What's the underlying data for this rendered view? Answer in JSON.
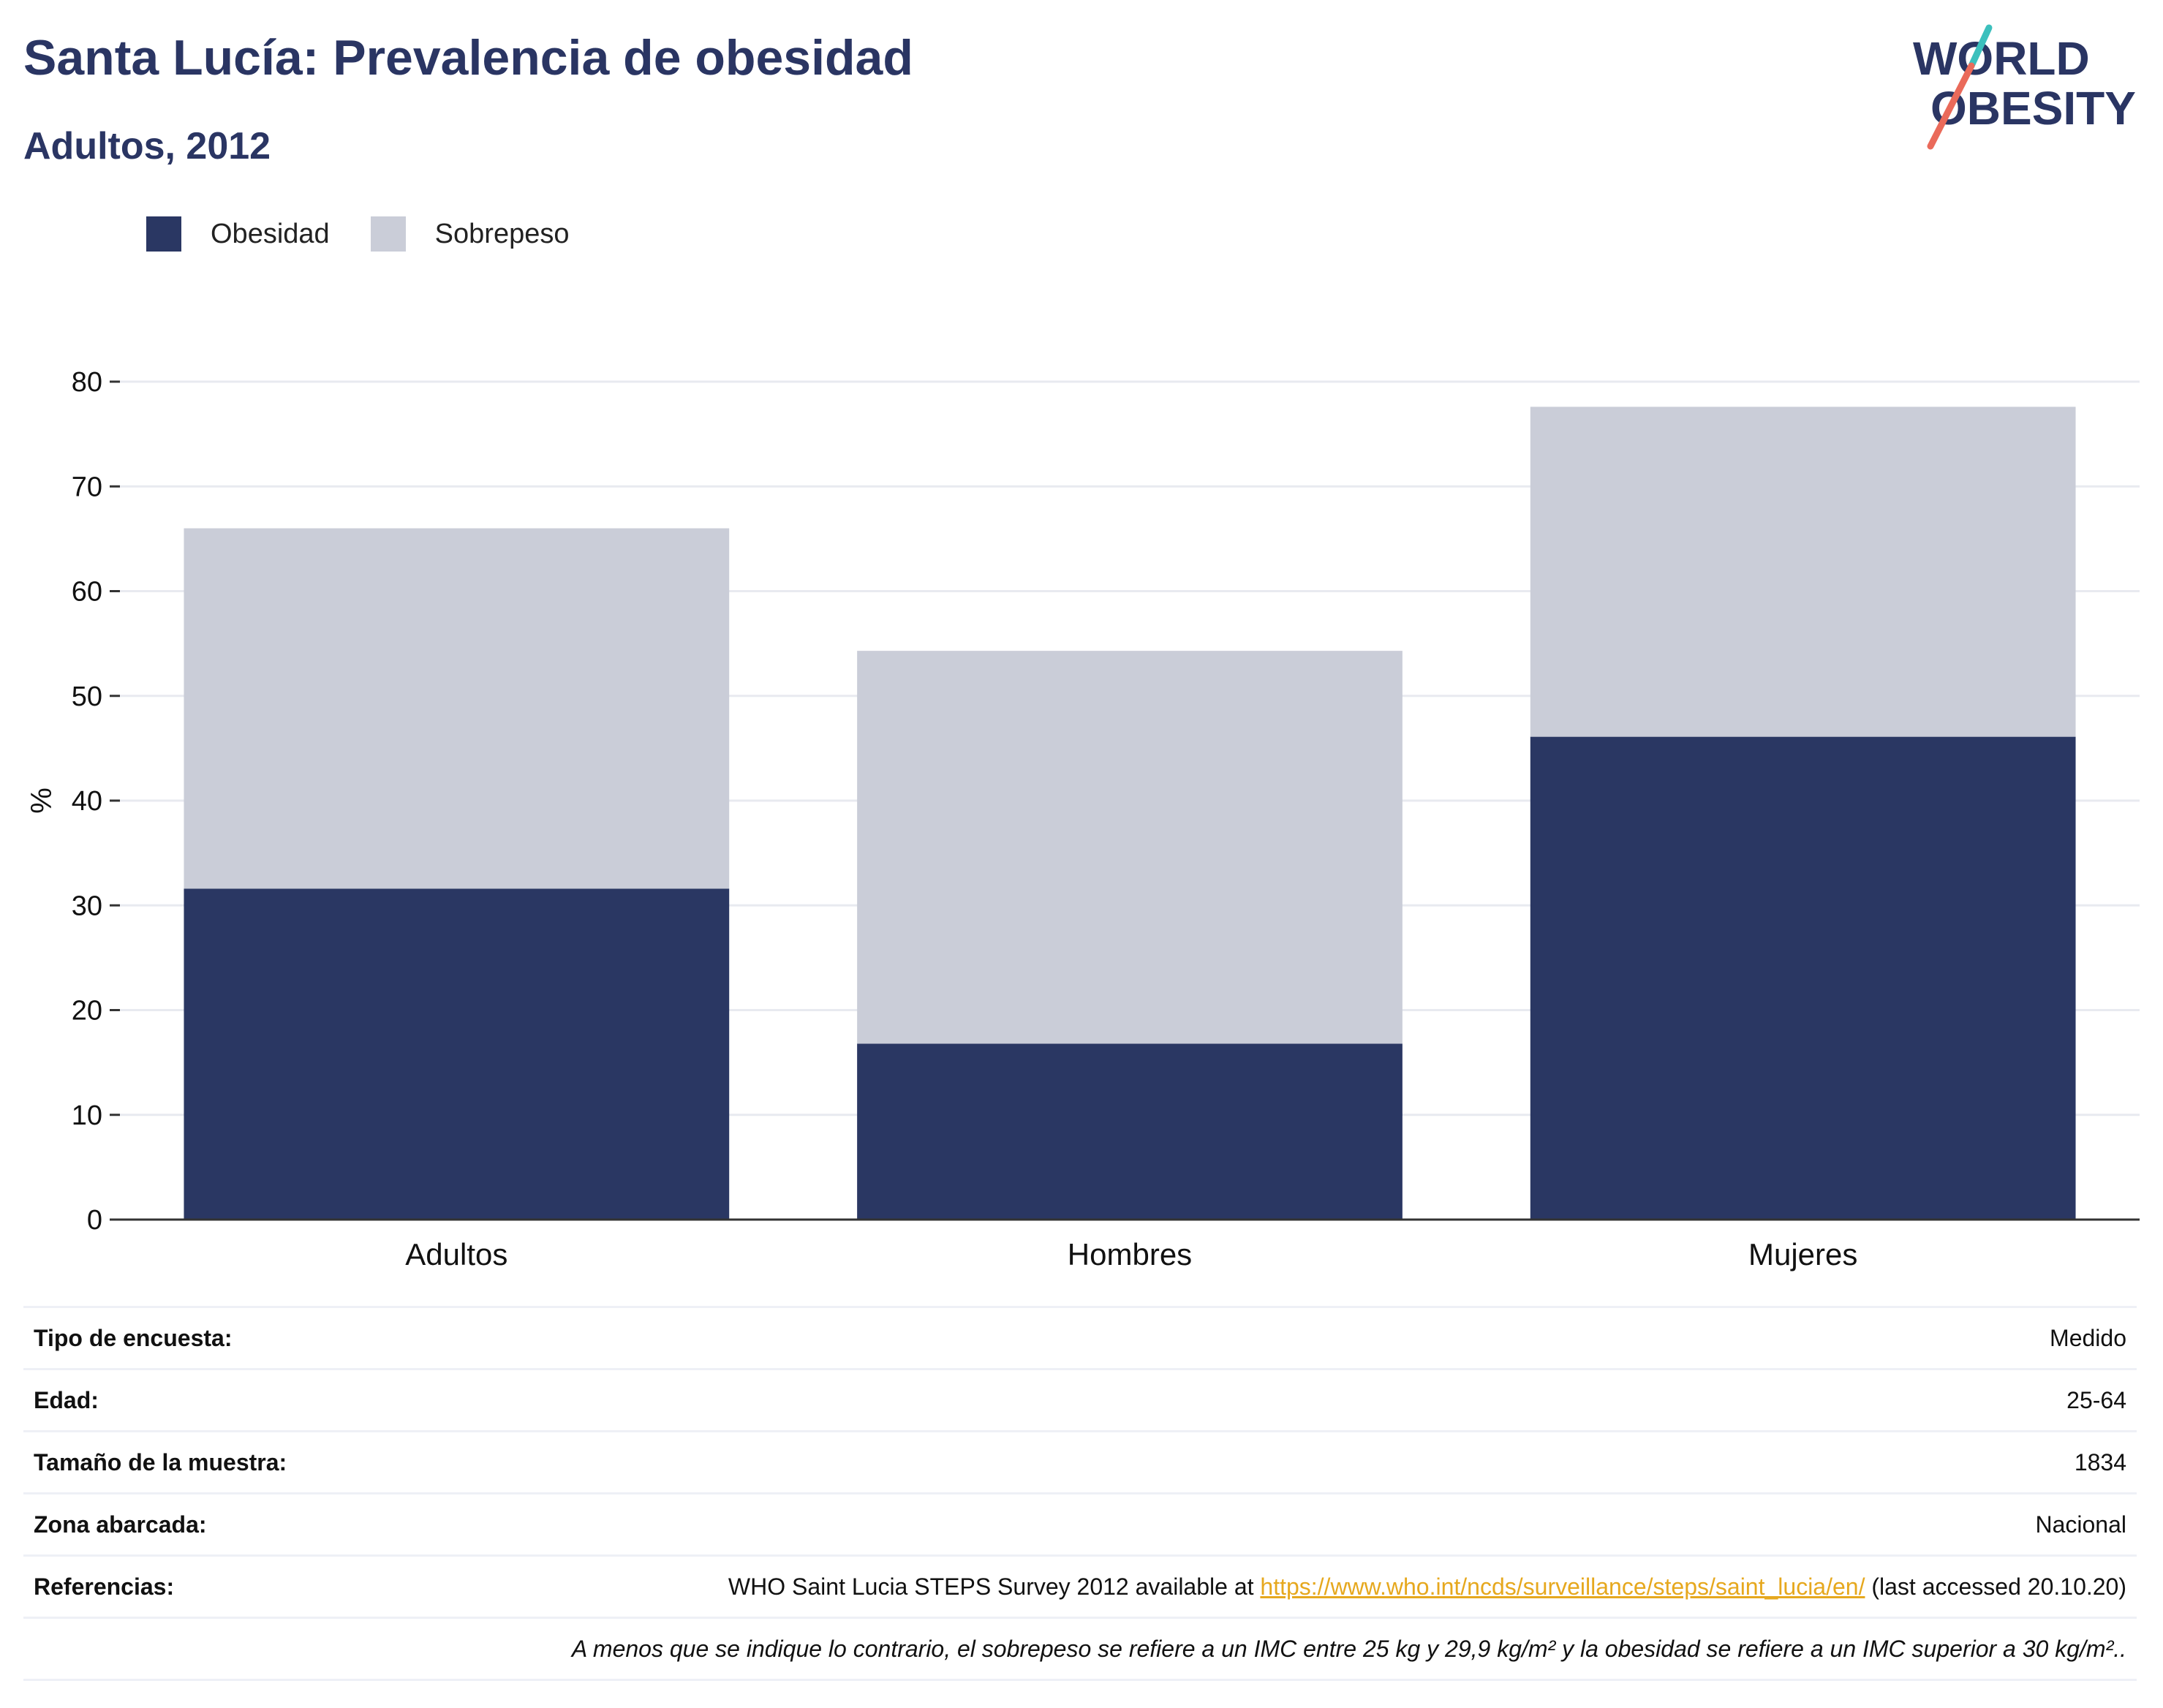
{
  "header": {
    "title": "Santa Lucía: Prevalencia de obesidad",
    "subtitle": "Adultos, 2012",
    "logo_line1": "WORLD",
    "logo_line2": "OBESITY"
  },
  "colors": {
    "obesity": "#2a3763",
    "overweight": "#cacdd8",
    "title": "#2a3563",
    "link": "#e6a81e",
    "logo_teal": "#3cc0bd",
    "logo_coral": "#ea6a5a"
  },
  "chart_data": {
    "type": "bar",
    "stacked": true,
    "categories": [
      "Adultos",
      "Hombres",
      "Mujeres"
    ],
    "series": [
      {
        "name": "Obesidad",
        "values": [
          31.6,
          16.8,
          46.1
        ]
      },
      {
        "name": "Sobrepeso",
        "values": [
          34.4,
          37.5,
          31.5
        ]
      }
    ],
    "ylabel": "%",
    "ylim": [
      0,
      80
    ],
    "yticks": [
      0,
      10,
      20,
      30,
      40,
      50,
      60,
      70,
      80
    ],
    "grid": true,
    "legend": "top-left"
  },
  "info": {
    "rows": [
      {
        "label": "Tipo de encuesta:",
        "value": "Medido"
      },
      {
        "label": "Edad:",
        "value": "25-64"
      },
      {
        "label": "Tamaño de la muestra:",
        "value": "1834"
      },
      {
        "label": "Zona abarcada:",
        "value": "Nacional"
      }
    ],
    "ref_label": "Referencias:",
    "ref_prefix": "WHO Saint Lucia STEPS Survey 2012 available at ",
    "ref_link": "https://www.who.int/ncds/surveillance/steps/saint_lucia/en/",
    "ref_suffix": " (last accessed 20.10.20)",
    "note": "A menos que se indique lo contrario, el sobrepeso se refiere a un IMC entre 25 kg y 29,9 kg/m² y la obesidad se refiere a un IMC superior a 30 kg/m².."
  }
}
